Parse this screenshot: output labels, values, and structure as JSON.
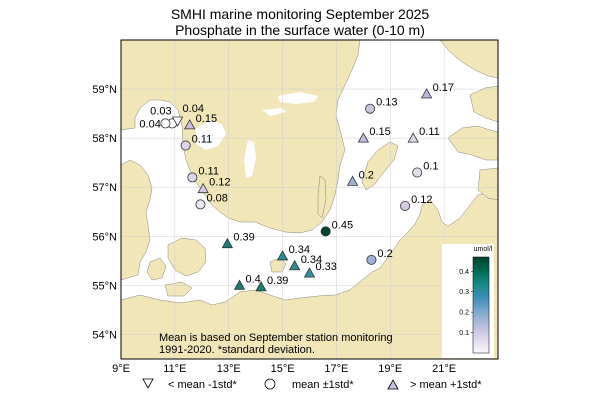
{
  "title": "SMHI marine monitoring September 2025",
  "subtitle": "Phosphate in the surface water (0-10 m)",
  "map": {
    "lon_range": [
      9,
      23
    ],
    "lat_range": [
      53.5,
      60
    ],
    "x_ticks": [
      "9°E",
      "11°E",
      "13°E",
      "15°E",
      "17°E",
      "19°E",
      "21°E"
    ],
    "x_tick_values": [
      9,
      11,
      13,
      15,
      17,
      19,
      21
    ],
    "y_ticks": [
      "54°N",
      "55°N",
      "56°N",
      "57°N",
      "58°N",
      "59°N"
    ],
    "y_tick_values": [
      54,
      55,
      56,
      57,
      58,
      59
    ],
    "land_color": "#f0e6b8",
    "sea_color": "#ffffff",
    "grid": true
  },
  "stations": [
    {
      "lon": 10.9,
      "lat": 58.3,
      "value": "0.03",
      "cat": "mean",
      "color": "#ffffff"
    },
    {
      "lon": 11.1,
      "lat": 58.35,
      "value": "0.04",
      "cat": "below",
      "color": "#ffffff"
    },
    {
      "lon": 10.65,
      "lat": 58.3,
      "value": "0.04",
      "cat": "mean",
      "color": "#ffffff"
    },
    {
      "lon": 11.55,
      "lat": 58.27,
      "value": "0.15",
      "cat": "above",
      "color": "#cdbfdc"
    },
    {
      "lon": 11.4,
      "lat": 57.85,
      "value": "0.11",
      "cat": "mean",
      "color": "#dcd4e8"
    },
    {
      "lon": 11.65,
      "lat": 57.2,
      "value": "0.11",
      "cat": "mean",
      "color": "#dcd4e8"
    },
    {
      "lon": 12.05,
      "lat": 56.97,
      "value": "0.12",
      "cat": "above",
      "color": "#d4cbe2"
    },
    {
      "lon": 11.95,
      "lat": 56.65,
      "value": "0.08",
      "cat": "mean",
      "color": "#ece6f1"
    },
    {
      "lon": 12.95,
      "lat": 55.85,
      "value": "0.39",
      "cat": "above",
      "color": "#1b7d74"
    },
    {
      "lon": 13.4,
      "lat": 55.0,
      "value": "0.4",
      "cat": "above",
      "color": "#1a7870"
    },
    {
      "lon": 14.2,
      "lat": 54.97,
      "value": "0.39",
      "cat": "above",
      "color": "#1b7d74"
    },
    {
      "lon": 15.0,
      "lat": 55.6,
      "value": "0.34",
      "cat": "above",
      "color": "#2a8f95"
    },
    {
      "lon": 15.45,
      "lat": 55.4,
      "value": "0.34",
      "cat": "above",
      "color": "#2a8f95"
    },
    {
      "lon": 16.0,
      "lat": 55.25,
      "value": "0.33",
      "cat": "above",
      "color": "#2e92a1"
    },
    {
      "lon": 16.6,
      "lat": 56.1,
      "value": "0.45",
      "cat": "mean",
      "color": "#00442e"
    },
    {
      "lon": 18.3,
      "lat": 55.52,
      "value": "0.2",
      "cat": "mean",
      "color": "#9eb0d3"
    },
    {
      "lon": 18.25,
      "lat": 58.6,
      "value": "0.13",
      "cat": "mean",
      "color": "#ccc3df"
    },
    {
      "lon": 20.35,
      "lat": 58.9,
      "value": "0.17",
      "cat": "above",
      "color": "#b7b8d9"
    },
    {
      "lon": 18.0,
      "lat": 58.0,
      "value": "0.15",
      "cat": "above",
      "color": "#c2bedb"
    },
    {
      "lon": 19.85,
      "lat": 58.0,
      "value": "0.11",
      "cat": "above",
      "color": "#dcd4e8"
    },
    {
      "lon": 17.6,
      "lat": 57.12,
      "value": "0.2",
      "cat": "above",
      "color": "#9eb0d3"
    },
    {
      "lon": 20.0,
      "lat": 57.3,
      "value": "0.1",
      "cat": "mean",
      "color": "#e2dbec"
    },
    {
      "lon": 19.55,
      "lat": 56.62,
      "value": "0.12",
      "cat": "mean",
      "color": "#d4cbe2"
    }
  ],
  "note_lines": [
    "Mean is based on September station monitoring",
    "1991-2020. *standard deviation."
  ],
  "colorbar": {
    "label": "umol/l",
    "ticks": [
      "0.1",
      "0.2",
      "0.3",
      "0.4"
    ],
    "tick_values": [
      0.1,
      0.2,
      0.3,
      0.4
    ],
    "min": 0.0,
    "max": 0.47,
    "colors": [
      "#fcf7fb",
      "#e0d9ec",
      "#b9bedd",
      "#7fa8cc",
      "#3f8fb8",
      "#178a86",
      "#016b54",
      "#00432c"
    ]
  },
  "legend": [
    {
      "symbol": "triangle-down",
      "label": "< mean -1std*"
    },
    {
      "symbol": "circle",
      "label": "mean ±1std*"
    },
    {
      "symbol": "triangle-up",
      "label": "> mean +1std*"
    }
  ]
}
